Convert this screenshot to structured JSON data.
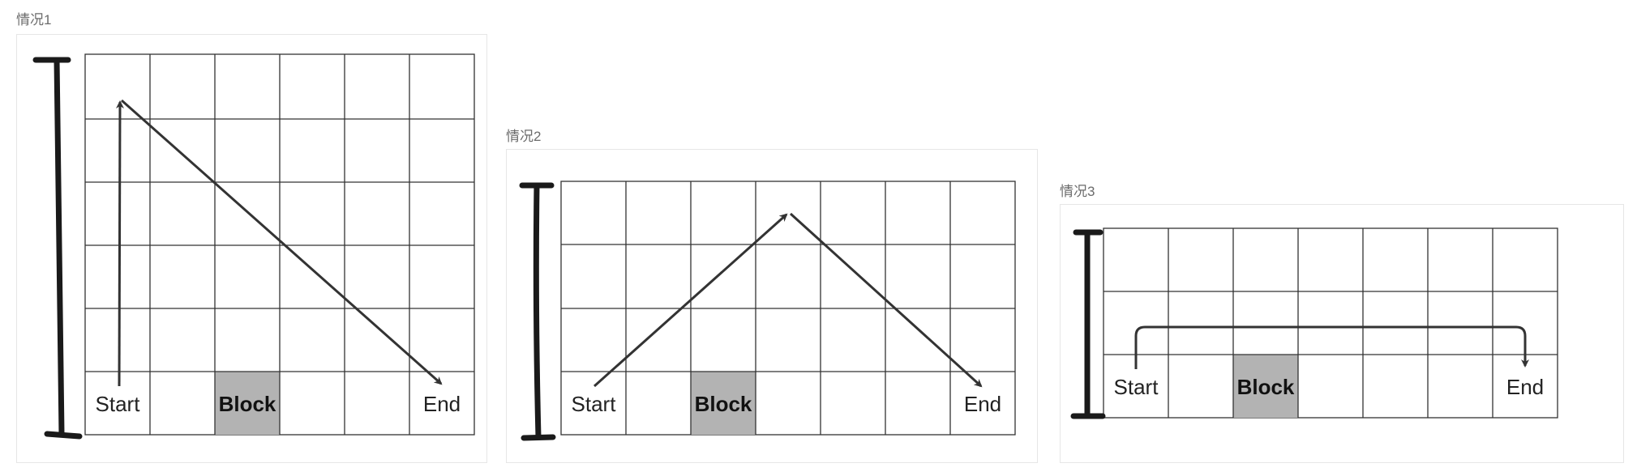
{
  "frames": [
    {
      "title": "情况1",
      "start_label": "Start",
      "block_label": "Block",
      "end_label": "End"
    },
    {
      "title": "情况2",
      "start_label": "Start",
      "block_label": "Block",
      "end_label": "End"
    },
    {
      "title": "情况3",
      "start_label": "Start",
      "block_label": "Block",
      "end_label": "End"
    }
  ],
  "colors": {
    "block": "#b3b3b3",
    "grid": "#333333",
    "arrow": "#333333",
    "bar": "#1a1a1a",
    "frame_border": "#e6e6e6"
  }
}
